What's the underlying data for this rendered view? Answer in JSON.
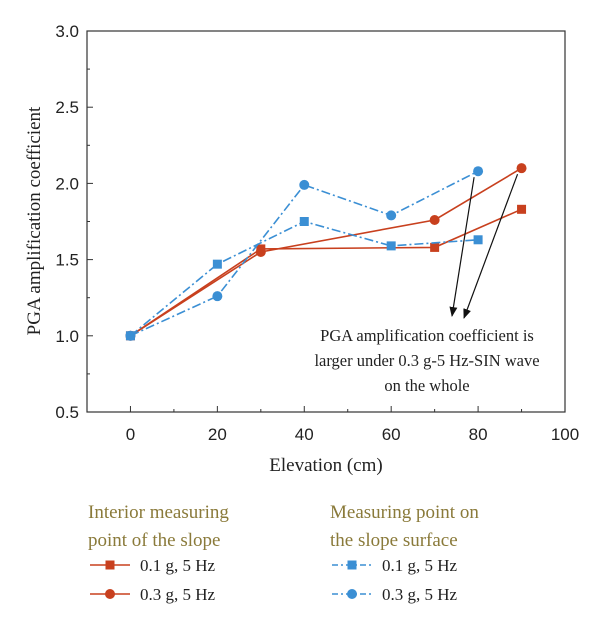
{
  "chart_data": {
    "type": "line",
    "xlabel": "Elevation (cm)",
    "ylabel": "PGA amplification coefficient",
    "xlim": [
      -10,
      100
    ],
    "ylim": [
      0.5,
      3.0
    ],
    "xticks": [
      0,
      20,
      40,
      60,
      80,
      100
    ],
    "yticks": [
      0.5,
      1.0,
      1.5,
      2.0,
      2.5,
      3.0
    ],
    "ytick_labels": [
      "0.5",
      "1.0",
      "1.5",
      "2.0",
      "2.5",
      "3.0"
    ],
    "grid": false,
    "legend_groups": [
      {
        "title_line1": "Interior measuring",
        "title_line2": "point of the slope",
        "entries": [
          "0.1 g, 5 Hz",
          "0.3 g, 5 Hz"
        ]
      },
      {
        "title_line1": "Measuring point on",
        "title_line2": "the slope surface",
        "entries": [
          "0.1 g, 5 Hz",
          "0.3 g, 5 Hz"
        ]
      }
    ],
    "series": [
      {
        "name": "0.1 g, 5 Hz",
        "group": "Interior measuring point of the slope",
        "color": "#c8401e",
        "marker": "square",
        "dash": "solid",
        "x": [
          0,
          30,
          70,
          90
        ],
        "y": [
          1.0,
          1.57,
          1.58,
          1.83
        ]
      },
      {
        "name": "0.3 g, 5 Hz",
        "group": "Interior measuring point of the slope",
        "color": "#c8401e",
        "marker": "circle",
        "dash": "solid",
        "x": [
          0,
          30,
          70,
          90
        ],
        "y": [
          1.0,
          1.55,
          1.76,
          2.1
        ]
      },
      {
        "name": "0.1 g, 5 Hz",
        "group": "Measuring point on the slope surface",
        "color": "#3b8fd4",
        "marker": "square",
        "dash": "dashdot",
        "x": [
          0,
          20,
          40,
          60,
          80
        ],
        "y": [
          1.0,
          1.47,
          1.75,
          1.59,
          1.63
        ]
      },
      {
        "name": "0.3 g, 5 Hz",
        "group": "Measuring point on the slope surface",
        "color": "#3b8fd4",
        "marker": "circle",
        "dash": "dashdot",
        "x": [
          0,
          20,
          40,
          60,
          80
        ],
        "y": [
          1.0,
          1.26,
          1.99,
          1.79,
          2.08
        ]
      }
    ],
    "annotation": {
      "lines": [
        "PGA amplification coefficient is",
        "larger under 0.3 g-5 Hz-SIN wave",
        "on the whole"
      ],
      "arrow_targets": [
        {
          "x": 80,
          "y": 2.08
        },
        {
          "x": 90,
          "y": 2.1
        }
      ]
    }
  }
}
